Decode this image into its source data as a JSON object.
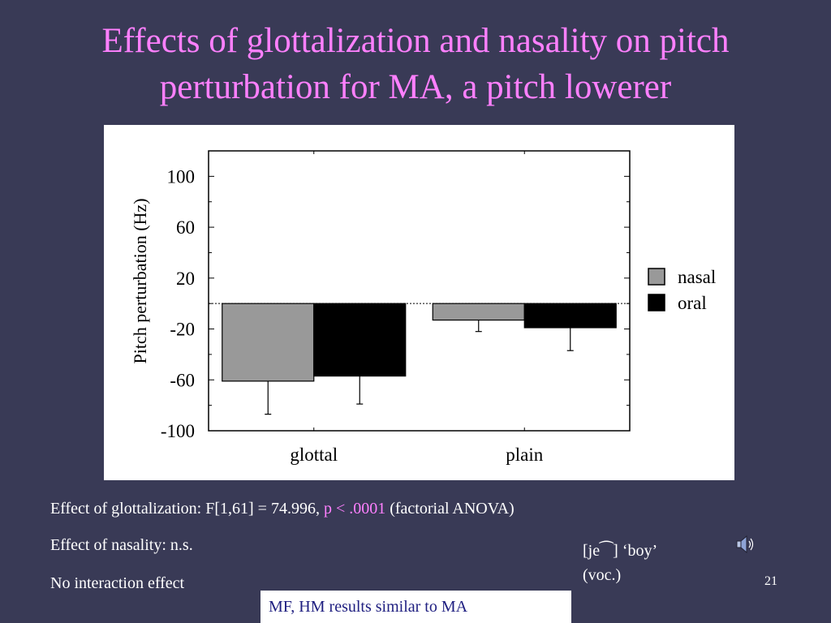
{
  "slide": {
    "title_line1": "Effects of glottalization and nasality on pitch",
    "title_line2": "perturbation for MA, a pitch lowerer",
    "notes": {
      "glottal_prefix": "Effect of glottalization:  F[1,61] = 74.996, ",
      "glottal_p": "p < .0001",
      "glottal_suffix": " (factorial ANOVA)",
      "nasality": "Effect of nasality:  n.s.",
      "interaction": "No interaction effect"
    },
    "gloss_line1": "[je⁀] ‘boy’",
    "gloss_line2": "(voc.)",
    "speaker_icon": "speaker-icon",
    "slide_number": "21",
    "callout": "MF, HM  results similar to MA"
  },
  "colors": {
    "background": "#393a56",
    "title": "#ff80ff",
    "nasal": "#999999",
    "oral": "#000000"
  },
  "chart_data": {
    "type": "bar",
    "categories": [
      "glottal",
      "plain"
    ],
    "series": [
      {
        "name": "nasal",
        "values": [
          -61,
          -13
        ],
        "error": [
          26,
          9
        ],
        "color": "#999999"
      },
      {
        "name": "oral",
        "values": [
          -57,
          -19
        ],
        "error": [
          22,
          18
        ],
        "color": "#000000"
      }
    ],
    "ylabel": "Pitch perturbation (Hz)",
    "ylim": [
      -100,
      120
    ],
    "yticks": [
      100,
      60,
      20,
      -20,
      -60,
      -100
    ],
    "ytick_labels": [
      "100",
      "60",
      "20",
      "-20",
      "-60",
      "-100"
    ],
    "zero_line": "dotted",
    "legend_position": "right"
  }
}
